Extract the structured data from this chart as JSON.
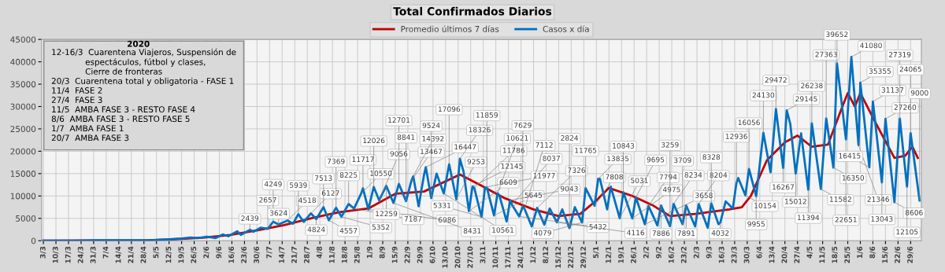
{
  "chart_data": {
    "type": "line",
    "title": "Total Confirmados Diarios",
    "annotations": [
      "2020",
      "12-16/3  Cuarentena Viajeros, Suspensión de\n             espectáculos, fútbol y clases,\n             Cierre de fronteras",
      "20/3  Cuarentena total y obligatoria - FASE 1",
      "11/4  FASE 2",
      "27/4  FASE 3",
      "11/5  AMBA FASE 3 - RESTO FASE 4",
      "8/6  AMBA FASE 3 - RESTO FASE 5",
      "1/7  AMBA FASE 1",
      "20/7  AMBA FASE 3"
    ],
    "xlim": [
      "2020-03-02",
      "2021-07-05"
    ],
    "xticks": [
      {
        "value": "2020-03-03",
        "label": "3/3"
      },
      {
        "value": "2020-03-10",
        "label": "10/3"
      },
      {
        "value": "2020-03-17",
        "label": "17/3"
      },
      {
        "value": "2020-03-24",
        "label": "24/3"
      },
      {
        "value": "2020-03-31",
        "label": "31/3"
      },
      {
        "value": "2020-04-07",
        "label": "7/4"
      },
      {
        "value": "2020-04-14",
        "label": "14/4"
      },
      {
        "value": "2020-04-21",
        "label": "21/4"
      },
      {
        "value": "2020-04-28",
        "label": "28/4"
      },
      {
        "value": "2020-05-05",
        "label": "5/5"
      },
      {
        "value": "2020-05-12",
        "label": "12/5"
      },
      {
        "value": "2020-05-19",
        "label": "19/5"
      },
      {
        "value": "2020-05-26",
        "label": "26/5"
      },
      {
        "value": "2020-06-02",
        "label": "2/6"
      },
      {
        "value": "2020-06-09",
        "label": "9/6"
      },
      {
        "value": "2020-06-16",
        "label": "16/6"
      },
      {
        "value": "2020-06-23",
        "label": "23/6"
      },
      {
        "value": "2020-06-30",
        "label": "30/6"
      },
      {
        "value": "2020-07-07",
        "label": "7/7"
      },
      {
        "value": "2020-07-14",
        "label": "14/7"
      },
      {
        "value": "2020-07-21",
        "label": "21/7"
      },
      {
        "value": "2020-07-28",
        "label": "28/7"
      },
      {
        "value": "2020-08-04",
        "label": "4/8"
      },
      {
        "value": "2020-08-11",
        "label": "11/8"
      },
      {
        "value": "2020-08-18",
        "label": "18/8"
      },
      {
        "value": "2020-08-25",
        "label": "25/8"
      },
      {
        "value": "2020-09-01",
        "label": "1/9"
      },
      {
        "value": "2020-09-08",
        "label": "8/9"
      },
      {
        "value": "2020-09-15",
        "label": "15/9"
      },
      {
        "value": "2020-09-22",
        "label": "22/9"
      },
      {
        "value": "2020-09-29",
        "label": "29/9"
      },
      {
        "value": "2020-10-06",
        "label": "6/10"
      },
      {
        "value": "2020-10-13",
        "label": "13/10"
      },
      {
        "value": "2020-10-20",
        "label": "20/10"
      },
      {
        "value": "2020-10-27",
        "label": "27/10"
      },
      {
        "value": "2020-11-03",
        "label": "3/11"
      },
      {
        "value": "2020-11-10",
        "label": "10/11"
      },
      {
        "value": "2020-11-17",
        "label": "17/11"
      },
      {
        "value": "2020-11-24",
        "label": "24/11"
      },
      {
        "value": "2020-12-01",
        "label": "1/12"
      },
      {
        "value": "2020-12-08",
        "label": "8/12"
      },
      {
        "value": "2020-12-15",
        "label": "15/12"
      },
      {
        "value": "2020-12-22",
        "label": "22/12"
      },
      {
        "value": "2020-12-29",
        "label": "29/12"
      },
      {
        "value": "2021-01-05",
        "label": "5/1"
      },
      {
        "value": "2021-01-12",
        "label": "12/1"
      },
      {
        "value": "2021-01-19",
        "label": "19/1"
      },
      {
        "value": "2021-01-26",
        "label": "26/1"
      },
      {
        "value": "2021-02-02",
        "label": "2/2"
      },
      {
        "value": "2021-02-09",
        "label": "9/2"
      },
      {
        "value": "2021-02-16",
        "label": "16/2"
      },
      {
        "value": "2021-02-23",
        "label": "23/2"
      },
      {
        "value": "2021-03-02",
        "label": "2/3"
      },
      {
        "value": "2021-03-09",
        "label": "9/3"
      },
      {
        "value": "2021-03-16",
        "label": "16/3"
      },
      {
        "value": "2021-03-23",
        "label": "23/3"
      },
      {
        "value": "2021-03-30",
        "label": "30/3"
      },
      {
        "value": "2021-04-06",
        "label": "6/4"
      },
      {
        "value": "2021-04-13",
        "label": "13/4"
      },
      {
        "value": "2021-04-20",
        "label": "20/4"
      },
      {
        "value": "2021-04-27",
        "label": "27/4"
      },
      {
        "value": "2021-05-04",
        "label": "4/5"
      },
      {
        "value": "2021-05-11",
        "label": "11/5"
      },
      {
        "value": "2021-05-18",
        "label": "18/5"
      },
      {
        "value": "2021-05-25",
        "label": "25/5"
      },
      {
        "value": "2021-06-01",
        "label": "1/6"
      },
      {
        "value": "2021-06-08",
        "label": "8/6"
      },
      {
        "value": "2021-06-15",
        "label": "15/6"
      },
      {
        "value": "2021-06-22",
        "label": "22/6"
      },
      {
        "value": "2021-06-29",
        "label": "29/6"
      }
    ],
    "ylim": [
      0,
      45000
    ],
    "yticks": [
      0,
      5000,
      10000,
      15000,
      20000,
      25000,
      30000,
      35000,
      40000,
      45000
    ],
    "grid": true,
    "legend": "top",
    "line_style": "solid",
    "marker": "none",
    "series": [
      {
        "name": "Promedio últimos 7 días",
        "color": "#c00000",
        "x": [
          "2020-03-03",
          "2020-05-01",
          "2020-05-19",
          "2020-06-01",
          "2020-06-15",
          "2020-07-01",
          "2020-07-15",
          "2020-08-01",
          "2020-08-15",
          "2020-08-31",
          "2020-09-15",
          "2020-10-01",
          "2020-10-21",
          "2020-11-01",
          "2020-11-15",
          "2020-12-01",
          "2020-12-15",
          "2020-12-22",
          "2020-12-27",
          "2021-01-05",
          "2021-01-12",
          "2021-01-25",
          "2021-02-05",
          "2021-02-15",
          "2021-03-01",
          "2021-03-20",
          "2021-03-27",
          "2021-04-01",
          "2021-04-10",
          "2021-04-20",
          "2021-04-27",
          "2021-05-05",
          "2021-05-14",
          "2021-05-22",
          "2021-05-25",
          "2021-05-29",
          "2021-06-01",
          "2021-06-10",
          "2021-06-20",
          "2021-06-26",
          "2021-06-30",
          "2021-07-03"
        ],
        "values": [
          0,
          100,
          400,
          700,
          1300,
          2400,
          3500,
          5200,
          6400,
          7200,
          10500,
          11000,
          14800,
          12500,
          9500,
          7000,
          5500,
          5800,
          6000,
          9000,
          11800,
          10000,
          8000,
          5500,
          6000,
          7000,
          7500,
          10000,
          18000,
          22000,
          23500,
          21000,
          21500,
          30000,
          33000,
          30000,
          33000,
          26000,
          18500,
          19000,
          21000,
          18500
        ]
      },
      {
        "name": "Casos x día",
        "color": "#0070c0",
        "x": [
          "2020-03-03",
          "2020-03-20",
          "2020-04-01",
          "2020-04-15",
          "2020-05-01",
          "2020-05-12",
          "2020-05-19",
          "2020-05-24",
          "2020-05-28",
          "2020-06-02",
          "2020-06-07",
          "2020-06-11",
          "2020-06-14",
          "2020-06-19",
          "2020-06-21",
          "2020-06-26",
          "2020-06-28",
          "2020-07-02",
          "2020-07-06",
          "2020-07-09",
          "2020-07-12",
          "2020-07-17",
          "2020-07-20",
          "2020-07-23",
          "2020-07-26",
          "2020-07-30",
          "2020-08-02",
          "2020-08-06",
          "2020-08-09",
          "2020-08-13",
          "2020-08-16",
          "2020-08-20",
          "2020-08-23",
          "2020-08-27",
          "2020-08-28",
          "2020-08-31",
          "2020-09-03",
          "2020-09-06",
          "2020-09-10",
          "2020-09-14",
          "2020-09-17",
          "2020-09-21",
          "2020-09-24",
          "2020-09-25",
          "2020-09-28",
          "2020-10-01",
          "2020-10-02",
          "2020-10-05",
          "2020-10-08",
          "2020-10-12",
          "2020-10-15",
          "2020-10-19",
          "2020-10-21",
          "2020-10-23",
          "2020-10-26",
          "2020-10-28",
          "2020-10-29",
          "2020-11-02",
          "2020-11-04",
          "2020-11-05",
          "2020-11-09",
          "2020-11-11",
          "2020-11-12",
          "2020-11-16",
          "2020-11-18",
          "2020-11-19",
          "2020-11-23",
          "2020-11-25",
          "2020-11-26",
          "2020-11-30",
          "2020-12-03",
          "2020-12-07",
          "2020-12-10",
          "2020-12-14",
          "2020-12-17",
          "2020-12-21",
          "2020-12-24",
          "2020-12-28",
          "2020-12-30",
          "2021-01-04",
          "2021-01-06",
          "2021-01-07",
          "2021-01-11",
          "2021-01-13",
          "2021-01-18",
          "2021-01-20",
          "2021-01-25",
          "2021-01-27",
          "2021-02-01",
          "2021-02-03",
          "2021-02-08",
          "2021-02-10",
          "2021-02-15",
          "2021-02-17",
          "2021-02-22",
          "2021-02-24",
          "2021-03-01",
          "2021-03-03",
          "2021-03-08",
          "2021-03-10",
          "2021-03-14",
          "2021-03-15",
          "2021-03-18",
          "2021-03-22",
          "2021-03-24",
          "2021-03-25",
          "2021-03-29",
          "2021-03-31",
          "2021-04-04",
          "2021-04-08",
          "2021-04-12",
          "2021-04-15",
          "2021-04-19",
          "2021-04-21",
          "2021-04-23",
          "2021-04-26",
          "2021-04-29",
          "2021-05-03",
          "2021-05-05",
          "2021-05-10",
          "2021-05-13",
          "2021-05-17",
          "2021-05-19",
          "2021-05-24",
          "2021-05-27",
          "2021-05-31",
          "2021-06-01",
          "2021-06-06",
          "2021-06-08",
          "2021-06-13",
          "2021-06-15",
          "2021-06-20",
          "2021-06-23",
          "2021-06-27",
          "2021-06-29",
          "2021-07-04"
        ],
        "values": [
          0,
          0,
          100,
          100,
          100,
          300,
          500,
          700,
          600,
          900,
          600,
          1400,
          1000,
          2100,
          1300,
          2439,
          2000,
          2900,
          2657,
          4249,
          3624,
          4518,
          3800,
          5939,
          4200,
          6127,
          4824,
          7513,
          4557,
          7369,
          5352,
          8225,
          7187,
          10550,
          11717,
          6986,
          12026,
          9056,
          12259,
          8431,
          12701,
          8841,
          13467,
          14392,
          7700,
          14700,
          16447,
          9524,
          15000,
          10561,
          17096,
          9253,
          18326,
          15500,
          6609,
          12145,
          11786,
          5331,
          11977,
          11859,
          5645,
          10621,
          10100,
          4300,
          9043,
          8037,
          5432,
          7629,
          7112,
          3200,
          7326,
          3600,
          7200,
          4116,
          7000,
          2824,
          7500,
          4079,
          11765,
          7808,
          13835,
          13800,
          7000,
          12100,
          5031,
          10843,
          4975,
          9695,
          3658,
          7794,
          3400,
          7886,
          3259,
          8234,
          3709,
          7891,
          3200,
          8204,
          2900,
          8328,
          3700,
          4032,
          8800,
          7200,
          12936,
          14000,
          10154,
          16056,
          9955,
          24130,
          15300,
          29472,
          16267,
          29145,
          26100,
          15012,
          24000,
          11394,
          26238,
          11582,
          27363,
          16350,
          39652,
          22651,
          41080,
          21346,
          35355,
          16415,
          31137,
          13043,
          27260,
          8606,
          27319,
          12105,
          24065,
          9000
        ],
        "value_labels": [
          null,
          null,
          null,
          null,
          null,
          null,
          null,
          null,
          null,
          null,
          null,
          null,
          null,
          null,
          null,
          "2439",
          null,
          null,
          "2657",
          "4249",
          "3624",
          "4518",
          null,
          "5939",
          null,
          "6127",
          "4824",
          "7513",
          "4557",
          "7369",
          "5352",
          "8225",
          "7187",
          "10550",
          "11717",
          "6986",
          "12026",
          "9056",
          "12259",
          "8431",
          "12701",
          "8841",
          "13467",
          "14392",
          null,
          null,
          "16447",
          "9524",
          null,
          "10561",
          "17096",
          "9253",
          "18326",
          null,
          "6609",
          "12145",
          "11786",
          "5331",
          "11977",
          "11859",
          "5645",
          "10621",
          null,
          null,
          "9043",
          "8037",
          "5432",
          "7629",
          "7112",
          null,
          "7326",
          null,
          null,
          "4116",
          null,
          "2824",
          null,
          "4079",
          "11765",
          "7808",
          "13835",
          null,
          null,
          null,
          "5031",
          "10843",
          "4975",
          "9695",
          "3658",
          "7794",
          null,
          "7886",
          "3259",
          "8234",
          "3709",
          "7891",
          null,
          "8204",
          null,
          "8328",
          null,
          "4032",
          null,
          null,
          "12936",
          null,
          "10154",
          "16056",
          "9955",
          "24130",
          null,
          "29472",
          "16267",
          "29145",
          null,
          "15012",
          null,
          "11394",
          "26238",
          "11582",
          "27363",
          "16350",
          "39652",
          "22651",
          "41080",
          "21346",
          "35355",
          "16415",
          "31137",
          "13043",
          "27260",
          "8606",
          "27319",
          "12105",
          "24065",
          "9000"
        ]
      }
    ]
  }
}
